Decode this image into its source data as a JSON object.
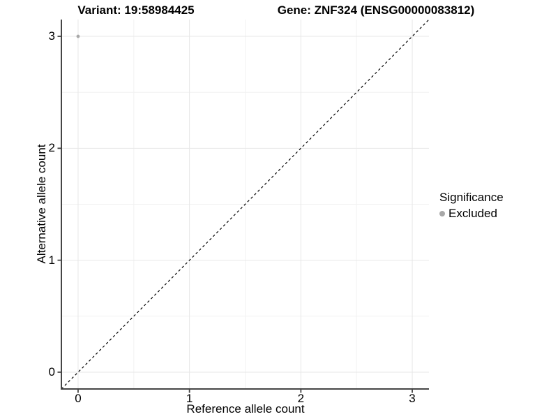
{
  "figure": {
    "titles": {
      "variant": "Variant: 19:58984425",
      "gene": "Gene: ZNF324 (ENSG00000083812)"
    },
    "x_axis": {
      "label": "Reference allele count",
      "tick_labels": [
        "0",
        "1",
        "2",
        "3"
      ]
    },
    "y_axis": {
      "label": "Alternative allele count",
      "tick_labels": [
        "0",
        "1",
        "2",
        "3"
      ]
    },
    "legend": {
      "title": "Significance",
      "items": [
        {
          "label": "Excluded",
          "marker": "circle-icon",
          "color": "#a8a8a8"
        }
      ]
    }
  },
  "chart_data": {
    "type": "scatter",
    "title": "Variant: 19:58984425",
    "subtitle": "Gene: ZNF324 (ENSG00000083812)",
    "xlabel": "Reference allele count",
    "ylabel": "Alternative allele count",
    "xlim": [
      -0.15,
      3.15
    ],
    "ylim": [
      -0.15,
      3.15
    ],
    "x_ticks": [
      0,
      1,
      2,
      3
    ],
    "y_ticks": [
      0,
      1,
      2,
      3
    ],
    "minor_ticks": [
      0.5,
      1.5,
      2.5
    ],
    "grid": "major and minor, light gray on white",
    "legend_position": "right",
    "series": [
      {
        "name": "Excluded",
        "color": "#a8a8a8",
        "marker": "circle",
        "points": [
          [
            0,
            3
          ]
        ]
      }
    ],
    "reference_line": {
      "type": "identity y=x",
      "style": "dashed",
      "color": "#000000",
      "span": [
        -0.15,
        3.15
      ]
    }
  },
  "style": {
    "background": "#ffffff",
    "grid_major_color": "#e7e7e7",
    "grid_minor_color": "#f2f2f2",
    "axis_line_color": "#454545",
    "tick_color": "#454545",
    "text_color": "#000000",
    "point_color": "#a8a8a8"
  }
}
